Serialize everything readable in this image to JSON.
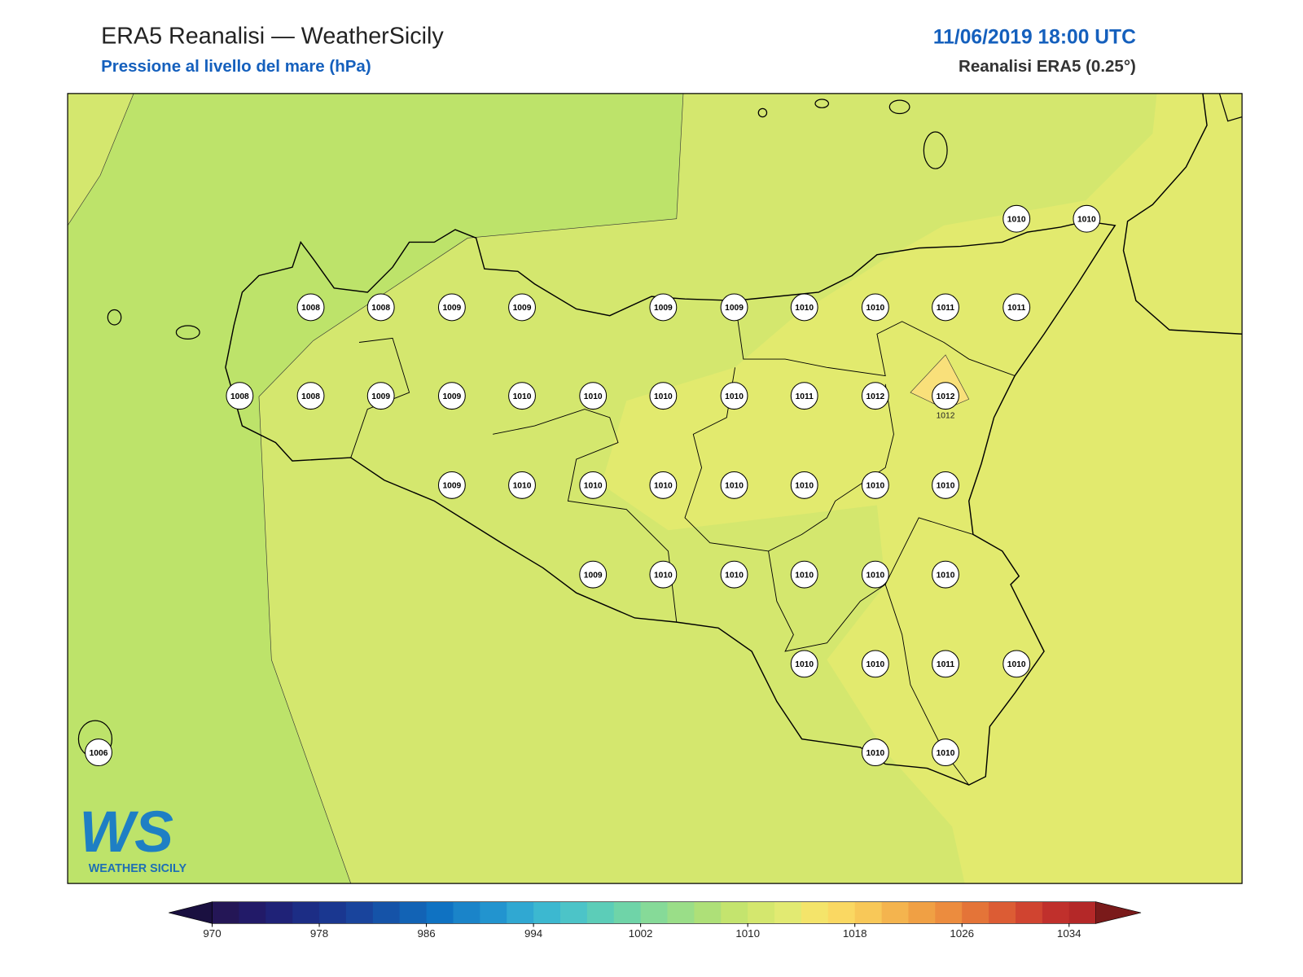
{
  "header": {
    "title": "ERA5 Reanalisi — WeatherSicily",
    "subtitle": "Pressione al livello del mare (hPa)",
    "datetime": "11/06/2019 18:00 UTC",
    "source": "Reanalisi ERA5 (0.25°)"
  },
  "stations": [
    1010,
    1010,
    1008,
    1008,
    1009,
    1009,
    1009,
    1009,
    1010,
    1010,
    1011,
    1011,
    1008,
    1008,
    1009,
    1009,
    1010,
    1010,
    1010,
    1010,
    1011,
    1012,
    1012,
    1009,
    1010,
    1010,
    1010,
    1010,
    1010,
    1010,
    1010,
    1009,
    1010,
    1010,
    1010,
    1010,
    1010,
    1010,
    1010,
    1011,
    1010,
    1006,
    1010,
    1010
  ],
  "contour_label": 1012,
  "colorbar": {
    "ticks": [
      970,
      978,
      986,
      994,
      1002,
      1010,
      1018,
      1026,
      1034
    ],
    "colors": [
      "#241656",
      "#221a68",
      "#1f2277",
      "#1c2d85",
      "#1a3790",
      "#19449c",
      "#1553a8",
      "#1263b5",
      "#0f72c2",
      "#1a84c9",
      "#2294cf",
      "#30a8d2",
      "#3cb8d0",
      "#4cc4c8",
      "#5ccdb8",
      "#6fd4a8",
      "#86da98",
      "#9ade88",
      "#aee078",
      "#c4e46e",
      "#d4e76e",
      "#e2ea72",
      "#f4e46a",
      "#fad862",
      "#f8c858",
      "#f4b44e",
      "#f0a044",
      "#ec8c3e",
      "#e47438",
      "#dc5c34",
      "#d04430",
      "#c0302c",
      "#b42828"
    ],
    "extend_colors": [
      "#1a1040",
      "#7a1a1a"
    ]
  },
  "logo": {
    "mark": "WS",
    "text": "WEATHER SICILY"
  }
}
